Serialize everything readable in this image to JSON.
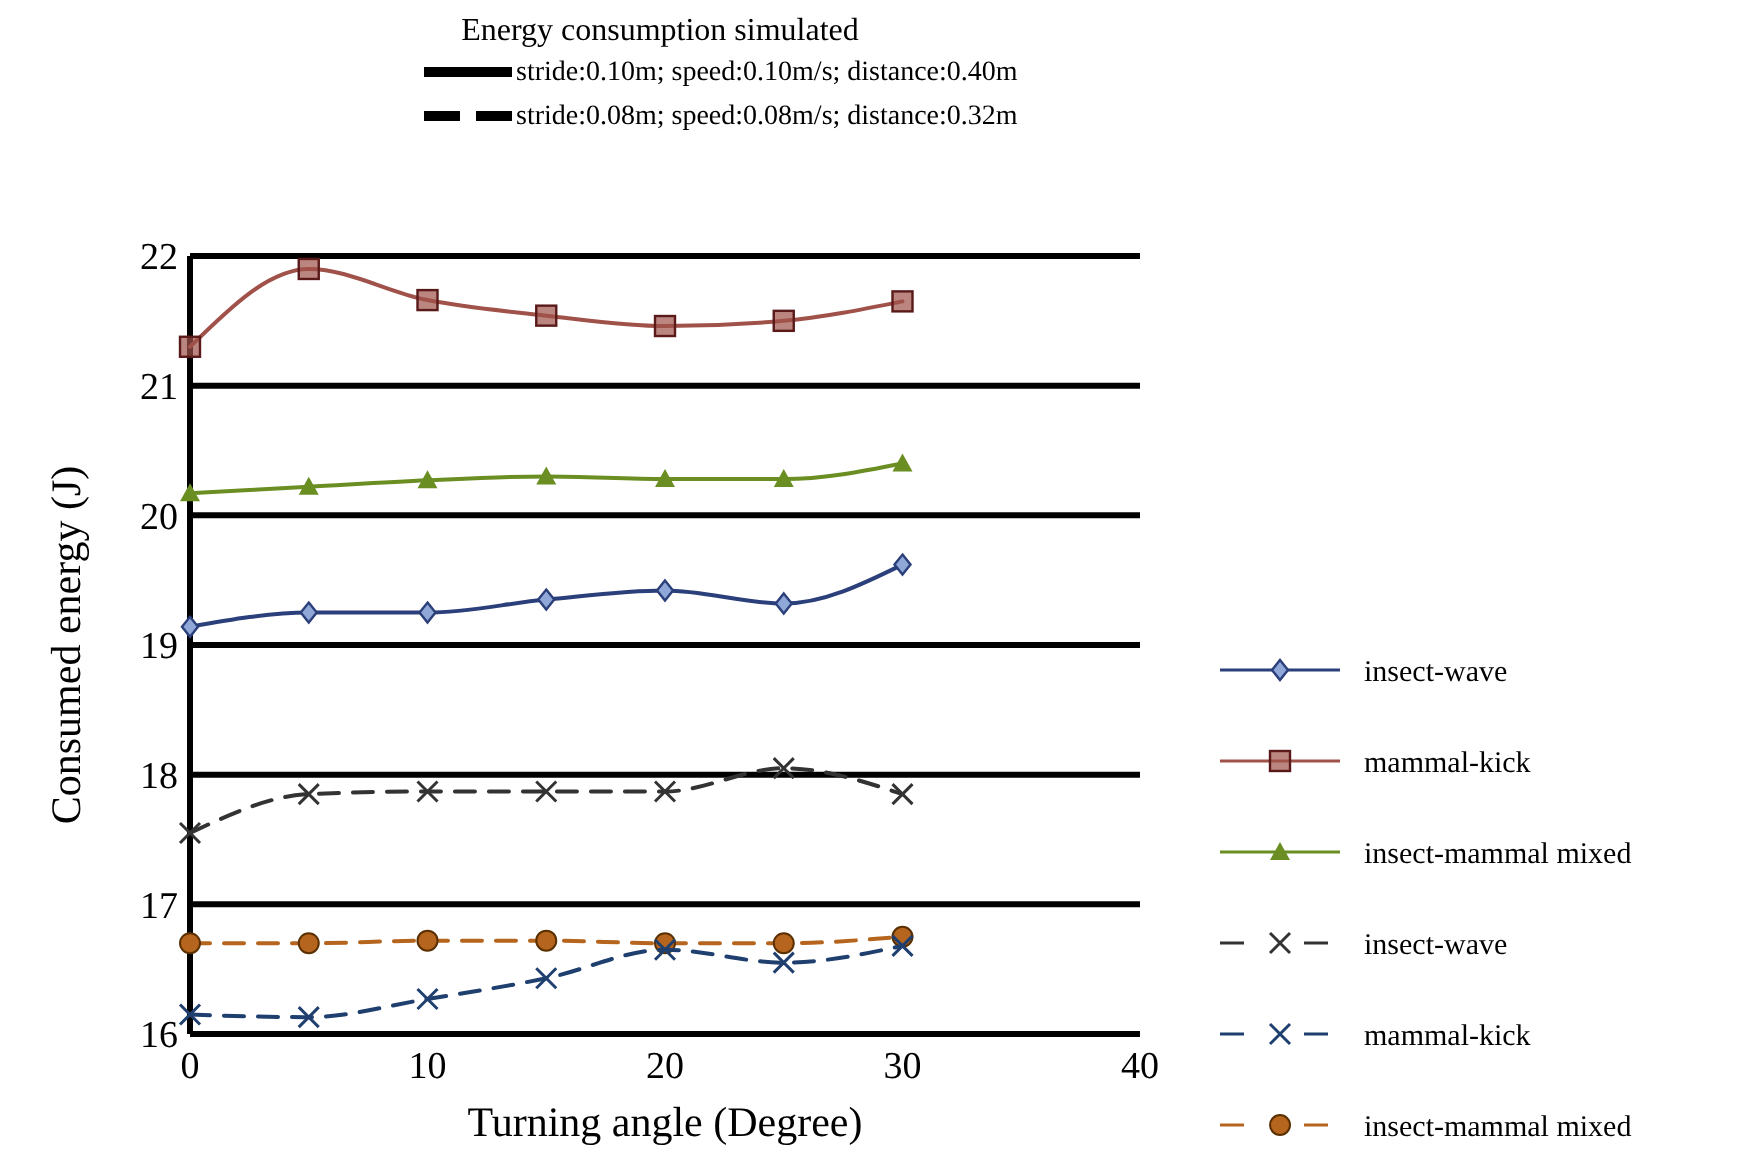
{
  "chart_data": {
    "type": "line",
    "title": "Energy consumption simulated",
    "xlabel": "Turning angle (Degree)",
    "ylabel": "Consumed energy (J)",
    "annotations": [
      "stride:0.10m; speed:0.10m/s; distance:0.40m",
      "stride:0.08m; speed:0.08m/s; distance:0.32m"
    ],
    "x": [
      0,
      5,
      10,
      15,
      20,
      25,
      30
    ],
    "xlim": [
      0,
      40
    ],
    "xticks": [
      0,
      10,
      20,
      30,
      40
    ],
    "ylim": [
      16,
      22
    ],
    "yticks": [
      16,
      17,
      18,
      19,
      20,
      21,
      22
    ],
    "grid": "y",
    "legend": "right",
    "series": [
      {
        "name": "insect-wave",
        "color": "#2b3f7a",
        "marker": "diamond",
        "line_style": "solid",
        "values": [
          19.14,
          19.25,
          19.25,
          19.35,
          19.42,
          19.32,
          19.62
        ]
      },
      {
        "name": "mammal-kick",
        "color": "#a0524a",
        "marker": "square",
        "line_style": "solid",
        "values": [
          21.3,
          21.9,
          21.66,
          21.54,
          21.46,
          21.5,
          21.65
        ]
      },
      {
        "name": "insect-mammal mixed",
        "color": "#6b8e23",
        "marker": "triangle",
        "line_style": "solid",
        "values": [
          20.17,
          20.22,
          20.27,
          20.3,
          20.28,
          20.28,
          20.4
        ]
      },
      {
        "name": "insect-wave",
        "color": "#333333",
        "marker": "cross",
        "line_style": "dashed",
        "values": [
          17.55,
          17.85,
          17.87,
          17.87,
          17.87,
          18.05,
          17.85
        ]
      },
      {
        "name": "mammal-kick",
        "color": "#1f3f6f",
        "marker": "cross",
        "line_style": "dashed",
        "values": [
          16.15,
          16.13,
          16.27,
          16.43,
          16.65,
          16.55,
          16.68
        ]
      },
      {
        "name": "insect-mammal mixed",
        "color": "#b5651d",
        "marker": "circle",
        "line_style": "dashed",
        "values": [
          16.7,
          16.7,
          16.72,
          16.72,
          16.7,
          16.7,
          16.75
        ]
      }
    ]
  }
}
